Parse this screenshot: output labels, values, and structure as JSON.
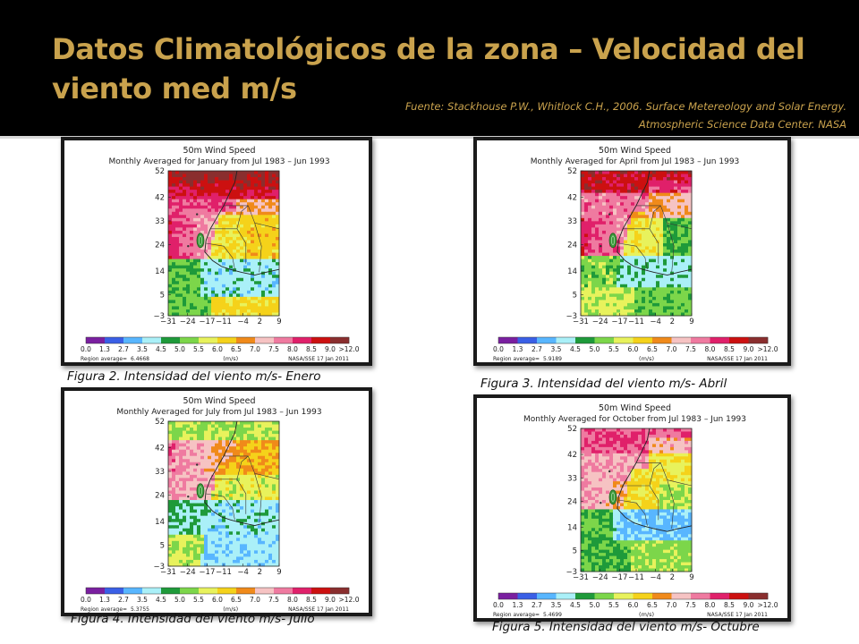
{
  "slide": {
    "title": "Datos Climatológicos de la zona – Velocidad del viento med m/s",
    "source_line1": "Fuente: Stackhouse P.W., Whitlock C.H., 2006. Surface Metereology and Solar Energy.",
    "source_line2": "Atmospheric Science Data Center. NASA"
  },
  "colors": {
    "title": "#c9a24d",
    "scale": [
      "#7a1fa0",
      "#3a5fe6",
      "#58b6ff",
      "#aaf0f8",
      "#1e9a3a",
      "#7cd64a",
      "#e8f25c",
      "#f5d21a",
      "#f08a1a",
      "#f6c3c3",
      "#ef7aa0",
      "#e0206a",
      "#cc1010",
      "#8a2e2e"
    ]
  },
  "maps": [
    {
      "heading": "50m Wind Speed",
      "subtitle": "Monthly Averaged for January from Jul 1983 – Jun 1993",
      "region_average": "6.4668",
      "caption": "Figura 2. Intensidad del viento m/s- Enero"
    },
    {
      "heading": "50m Wind Speed",
      "subtitle": "Monthly Averaged for April from Jul 1983 – Jun 1993",
      "region_average": "5.9189",
      "caption": "Figura 3. Intensidad del viento m/s- Abril"
    },
    {
      "heading": "50m Wind Speed",
      "subtitle": "Monthly Averaged for July from Jul 1983 – Jun 1993",
      "region_average": "5.3755",
      "caption": "Figura 4. Intensidad del viento m/s- Julio"
    },
    {
      "heading": "50m Wind Speed",
      "subtitle": "Monthly Averaged for October from Jul 1983 – Jun 1993",
      "region_average": "5.4699",
      "caption": "Figura 5. Intensidad del viento m/s- Octubre"
    }
  ],
  "map_common": {
    "region_label": "Region average=",
    "units": "(m/s)",
    "credit": "NASA/SSE   17 Jan 2011",
    "scale_labels": [
      "0.0",
      "1.3",
      "2.7",
      "3.5",
      "4.5",
      "5.0",
      "5.5",
      "6.0",
      "6.5",
      "7.0",
      "7.5",
      "8.0",
      "8.5",
      "9.0",
      ">12.0"
    ]
  },
  "chart_data": [
    {
      "type": "heatmap",
      "title": "50m Wind Speed",
      "subtitle": "Monthly Averaged for January from Jul 1983 – Jun 1993",
      "xlabel": "",
      "ylabel": "",
      "x_ticks": [
        -31,
        -24,
        -17,
        -11,
        -4,
        2,
        9
      ],
      "y_ticks": [
        52,
        42,
        33,
        24,
        14,
        5,
        -3
      ],
      "xlim": [
        -31,
        9
      ],
      "ylim": [
        -3,
        52
      ],
      "legend_unit": "(m/s)",
      "region_average": 6.4668
    },
    {
      "type": "heatmap",
      "title": "50m Wind Speed",
      "subtitle": "Monthly Averaged for April from Jul 1983 – Jun 1993",
      "x_ticks": [
        -31,
        -24,
        -17,
        -11,
        -4,
        2,
        9
      ],
      "y_ticks": [
        52,
        42,
        33,
        24,
        14,
        5,
        -3
      ],
      "xlim": [
        -31,
        9
      ],
      "ylim": [
        -3,
        52
      ],
      "legend_unit": "(m/s)",
      "region_average": 5.9189
    },
    {
      "type": "heatmap",
      "title": "50m Wind Speed",
      "subtitle": "Monthly Averaged for July from Jul 1983 – Jun 1993",
      "x_ticks": [
        -31,
        -24,
        -17,
        -11,
        -4,
        2,
        9
      ],
      "y_ticks": [
        52,
        42,
        33,
        24,
        14,
        5,
        -3
      ],
      "xlim": [
        -31,
        9
      ],
      "ylim": [
        -3,
        52
      ],
      "legend_unit": "(m/s)",
      "region_average": 5.3755
    },
    {
      "type": "heatmap",
      "title": "50m Wind Speed",
      "subtitle": "Monthly Averaged for October from Jul 1983 – Jun 1993",
      "x_ticks": [
        -31,
        -24,
        -17,
        -11,
        -4,
        2,
        9
      ],
      "y_ticks": [
        52,
        42,
        33,
        24,
        14,
        5,
        -3
      ],
      "xlim": [
        -31,
        9
      ],
      "ylim": [
        -3,
        52
      ],
      "legend_unit": "(m/s)",
      "region_average": 5.4699
    }
  ]
}
